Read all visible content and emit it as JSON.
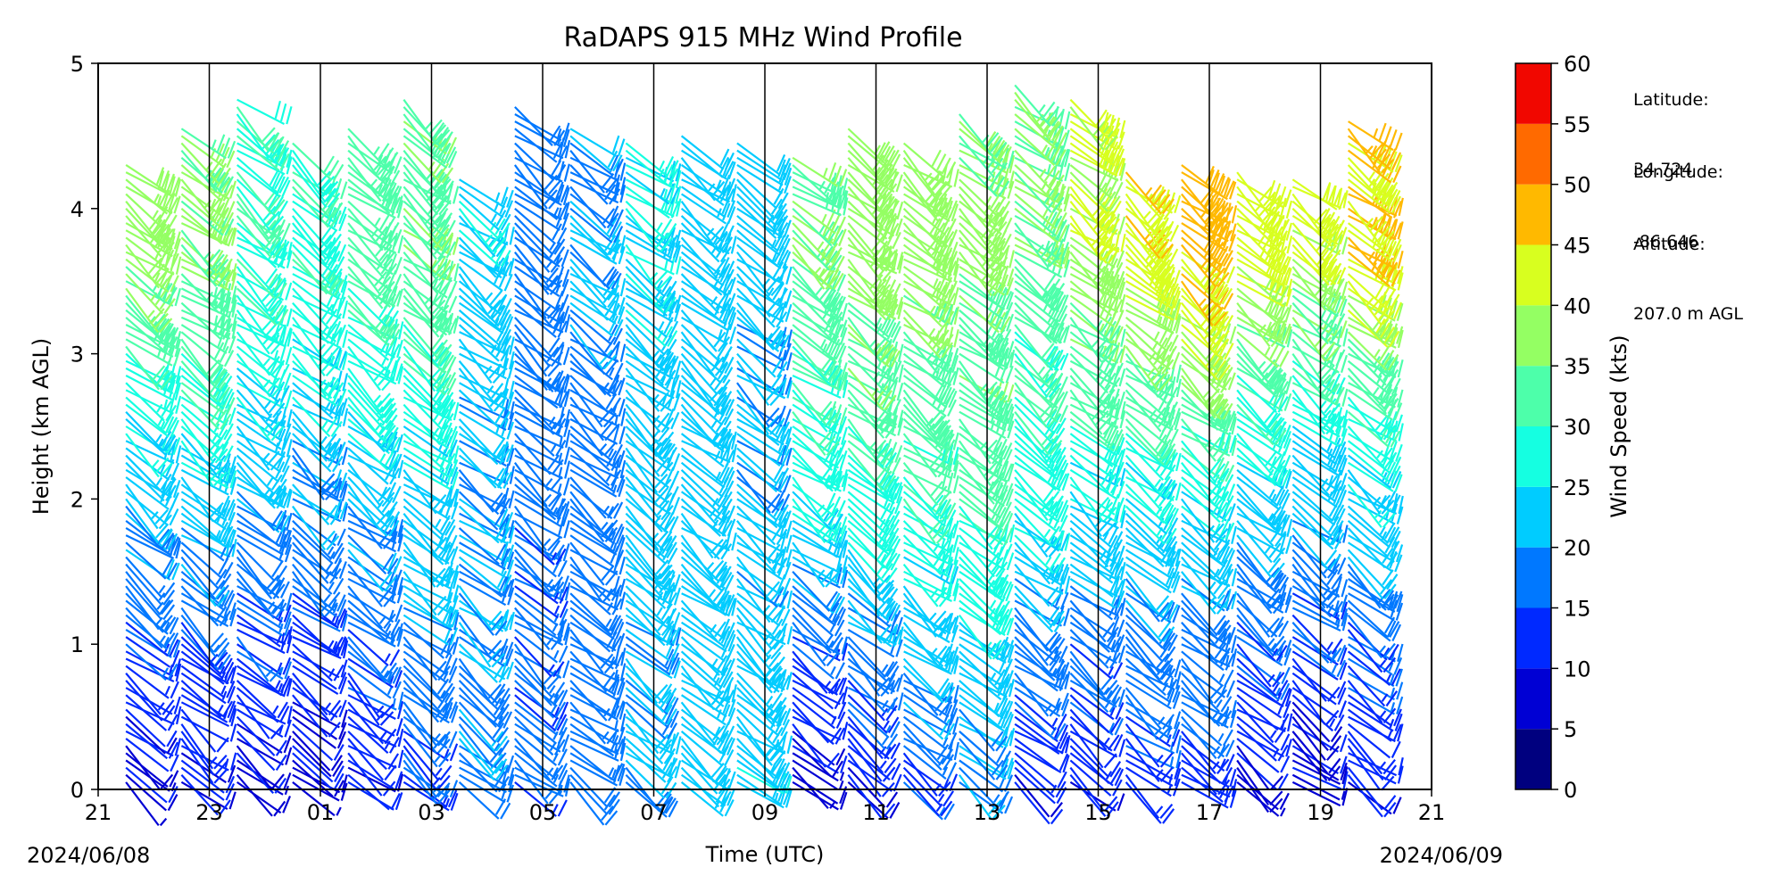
{
  "chart_data": {
    "type": "wind_barb",
    "title": "RaDAPS 915 MHz Wind Profile",
    "xlabel": "Time (UTC)",
    "ylabel": "Height (km AGL)",
    "xlim": [
      0,
      24
    ],
    "ylim": [
      0,
      5
    ],
    "x_tick_labels": [
      "21",
      "23",
      "01",
      "03",
      "05",
      "07",
      "09",
      "11",
      "13",
      "15",
      "17",
      "19",
      "21"
    ],
    "y_tick_labels": [
      "0",
      "1",
      "2",
      "3",
      "4",
      "5"
    ],
    "start_date": "2024/06/08",
    "end_date": "2024/06/09",
    "colorbar": {
      "label": "Wind Speed (kts)",
      "ticks": [
        0,
        5,
        10,
        15,
        20,
        25,
        30,
        35,
        40,
        45,
        50,
        55,
        60
      ],
      "colors": [
        "#00007f",
        "#0000d4",
        "#0029ff",
        "#0078ff",
        "#00ccff",
        "#15ffe1",
        "#4dffaa",
        "#94ff63",
        "#d8ff1f",
        "#ffb900",
        "#ff6a00",
        "#f10700",
        "#7f0000"
      ]
    },
    "profile_times_hours_after_start": [
      0.5,
      1.5,
      2.5,
      3.5,
      4.5,
      5.5,
      6.5,
      7.5,
      8.5,
      9.5,
      10.5,
      11.5,
      12.5,
      13.5,
      14.5,
      15.5,
      16.5,
      17.5,
      18.5,
      19.5,
      20.5,
      21.5,
      22.5
    ],
    "profile_speed_summary_kts": [
      {
        "low_levels": 8,
        "mid_levels": 22,
        "upper_levels": 38
      },
      {
        "low_levels": 9,
        "mid_levels": 24,
        "upper_levels": 36
      },
      {
        "low_levels": 8,
        "mid_levels": 22,
        "upper_levels": 30
      },
      {
        "low_levels": 8,
        "mid_levels": 20,
        "upper_levels": 30
      },
      {
        "low_levels": 10,
        "mid_levels": 22,
        "upper_levels": 32
      },
      {
        "low_levels": 14,
        "mid_levels": 24,
        "upper_levels": 34
      },
      {
        "low_levels": 18,
        "mid_levels": 20,
        "upper_levels": 24
      },
      {
        "low_levels": 16,
        "mid_levels": 17,
        "upper_levels": 18
      },
      {
        "low_levels": 18,
        "mid_levels": 17,
        "upper_levels": 20
      },
      {
        "low_levels": 20,
        "mid_levels": 22,
        "upper_levels": 25
      },
      {
        "low_levels": 22,
        "mid_levels": 22,
        "upper_levels": 22
      },
      {
        "low_levels": 24,
        "mid_levels": 20,
        "upper_levels": 22
      },
      {
        "low_levels": 6,
        "mid_levels": 28,
        "upper_levels": 34
      },
      {
        "low_levels": 10,
        "mid_levels": 30,
        "upper_levels": 38
      },
      {
        "low_levels": 15,
        "mid_levels": 30,
        "upper_levels": 38
      },
      {
        "low_levels": 18,
        "mid_levels": 32,
        "upper_levels": 36
      },
      {
        "low_levels": 10,
        "mid_levels": 28,
        "upper_levels": 34
      },
      {
        "low_levels": 10,
        "mid_levels": 26,
        "upper_levels": 40
      },
      {
        "low_levels": 12,
        "mid_levels": 26,
        "upper_levels": 44
      },
      {
        "low_levels": 12,
        "mid_levels": 26,
        "upper_levels": 48
      },
      {
        "low_levels": 8,
        "mid_levels": 24,
        "upper_levels": 42
      },
      {
        "low_levels": 8,
        "mid_levels": 22,
        "upper_levels": 40
      },
      {
        "low_levels": 10,
        "mid_levels": 24,
        "upper_levels": 46
      }
    ]
  },
  "site_info": {
    "latitude_label": "Latitude:",
    "latitude_value": "34.724",
    "longitude_label": "Longitude:",
    "longitude_value": "-86.646",
    "altitude_label": "Altitude:",
    "altitude_value": "207.0 m AGL"
  }
}
